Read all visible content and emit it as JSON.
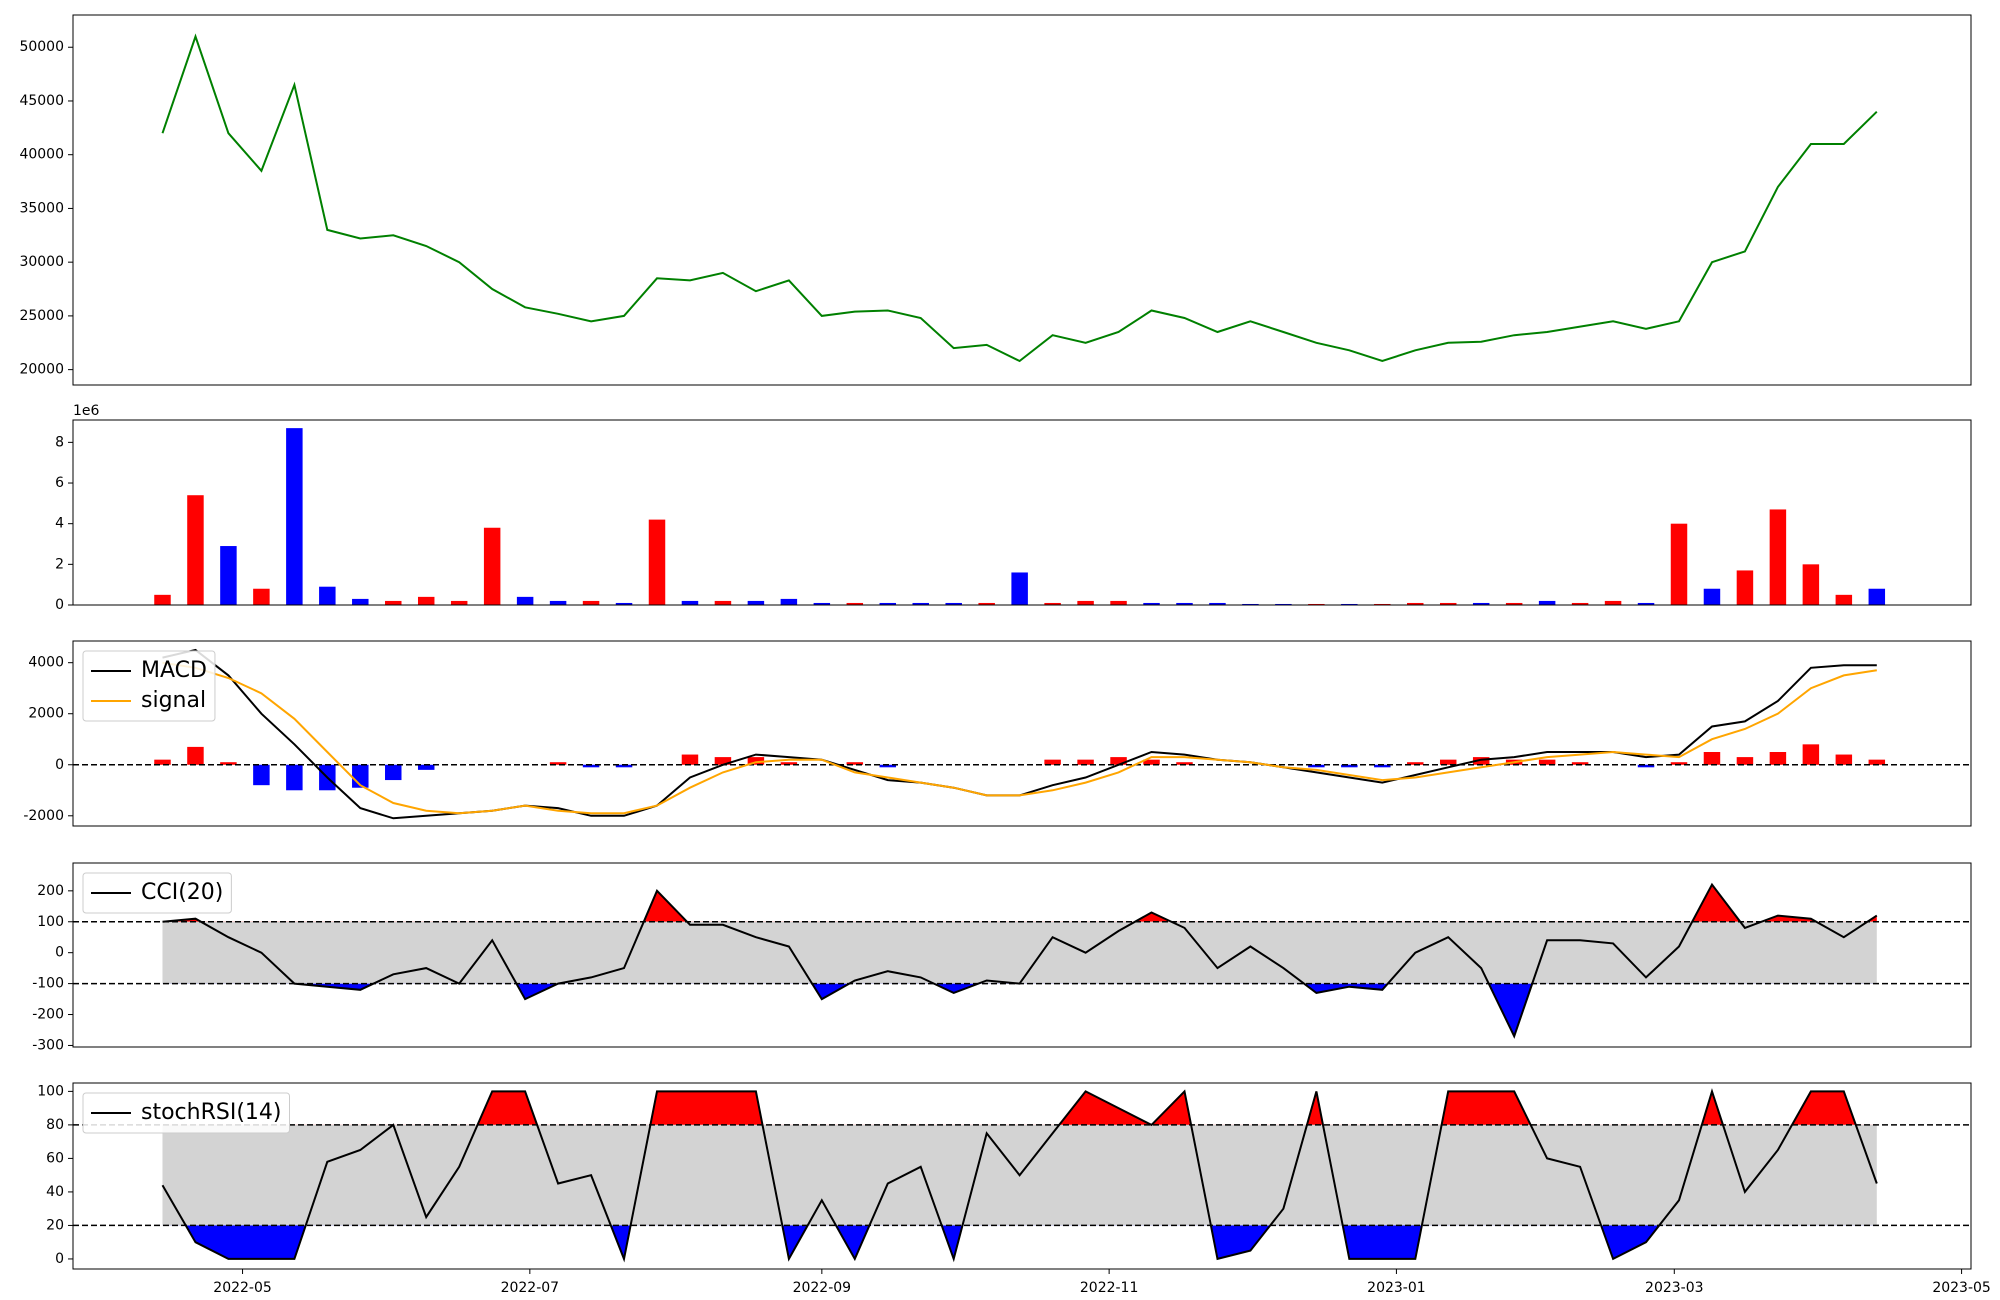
{
  "chart_data": [
    {
      "type": "line",
      "x": [
        -17,
        -10,
        -3,
        4,
        11,
        18,
        25,
        32,
        39,
        46,
        53,
        60,
        67,
        74,
        81,
        88,
        95,
        102,
        109,
        116,
        123,
        130,
        137,
        144,
        151,
        158,
        165,
        172,
        179,
        186,
        193,
        200,
        207,
        214,
        221,
        228,
        235,
        242,
        249,
        256,
        263,
        270,
        277,
        284,
        291,
        298,
        305,
        312,
        319,
        326,
        333,
        340,
        347
      ],
      "xlim": [
        -36,
        367
      ],
      "ylim": [
        18570,
        53000
      ],
      "yticks": [
        20000,
        25000,
        30000,
        35000,
        40000,
        45000,
        50000
      ],
      "series": [
        {
          "color": "green",
          "values": [
            42000,
            51000,
            42000,
            38500,
            46500,
            33000,
            32200,
            32500,
            31500,
            30000,
            27500,
            25800,
            25200,
            24500,
            25000,
            28500,
            28300,
            29000,
            27300,
            28300,
            25000,
            25400,
            25500,
            24800,
            22000,
            22300,
            20800,
            23200,
            22500,
            23500,
            25500,
            24800,
            23500,
            24500,
            23500,
            22500,
            21800,
            20800,
            21800,
            22500,
            22600,
            23200,
            23500,
            24000,
            24500,
            23800,
            24500,
            30000,
            31000,
            37000,
            41000,
            41000,
            44000
          ]
        }
      ]
    },
    {
      "type": "bar",
      "offset_label": "1e6",
      "x": [
        -17,
        -10,
        -3,
        4,
        11,
        18,
        25,
        32,
        39,
        46,
        53,
        60,
        67,
        74,
        81,
        88,
        95,
        102,
        109,
        116,
        123,
        130,
        137,
        144,
        151,
        158,
        165,
        172,
        179,
        186,
        193,
        200,
        207,
        214,
        221,
        228,
        235,
        242,
        249,
        256,
        263,
        270,
        277,
        284,
        291,
        298,
        305,
        312,
        319,
        326,
        333,
        340,
        347
      ],
      "xlim": [
        -36,
        367
      ],
      "ylim": [
        0,
        9.1
      ],
      "yticks": [
        0,
        2,
        4,
        6,
        8
      ],
      "values": [
        0.5,
        5.4,
        2.9,
        0.8,
        8.7,
        0.9,
        0.3,
        0.2,
        0.4,
        0.2,
        3.8,
        0.4,
        0.2,
        0.2,
        0.1,
        4.2,
        0.2,
        0.2,
        0.2,
        0.3,
        0.1,
        0.1,
        0.1,
        0.1,
        0.1,
        0.1,
        1.6,
        0.1,
        0.2,
        0.2,
        0.1,
        0.1,
        0.1,
        0.05,
        0.05,
        0.05,
        0.05,
        0.05,
        0.1,
        0.1,
        0.1,
        0.1,
        0.2,
        0.1,
        0.2,
        0.1,
        4.0,
        0.8,
        1.7,
        4.7,
        2.0,
        0.5,
        0.8
      ],
      "bar_colors": [
        "red",
        "red",
        "blue",
        "red",
        "blue",
        "blue",
        "blue",
        "red",
        "red",
        "red",
        "red",
        "blue",
        "blue",
        "red",
        "blue",
        "red",
        "blue",
        "red",
        "blue",
        "blue",
        "blue",
        "red",
        "blue",
        "blue",
        "blue",
        "red",
        "blue",
        "red",
        "red",
        "red",
        "blue",
        "blue",
        "blue",
        "blue",
        "blue",
        "red",
        "blue",
        "red",
        "red",
        "red",
        "blue",
        "red",
        "blue",
        "red",
        "red",
        "blue",
        "red",
        "blue",
        "red",
        "red",
        "red",
        "red",
        "blue"
      ]
    },
    {
      "type": "macd",
      "x": [
        -17,
        -10,
        -3,
        4,
        11,
        18,
        25,
        32,
        39,
        46,
        53,
        60,
        67,
        74,
        81,
        88,
        95,
        102,
        109,
        116,
        123,
        130,
        137,
        144,
        151,
        158,
        165,
        172,
        179,
        186,
        193,
        200,
        207,
        214,
        221,
        228,
        235,
        242,
        249,
        256,
        263,
        270,
        277,
        284,
        291,
        298,
        305,
        312,
        319,
        326,
        333,
        340,
        347
      ],
      "xlim": [
        -36,
        367
      ],
      "ylim": [
        -2400,
        4850
      ],
      "yticks": [
        -2000,
        0,
        2000,
        4000
      ],
      "hlines": [
        0
      ],
      "legend": "upper left",
      "hist": [
        200,
        700,
        100,
        -800,
        -1000,
        -1000,
        -900,
        -600,
        -200,
        0,
        0,
        0,
        100,
        -100,
        -100,
        0,
        400,
        300,
        300,
        100,
        0,
        100,
        -100,
        0,
        0,
        0,
        0,
        200,
        200,
        300,
        200,
        100,
        0,
        0,
        0,
        -100,
        -100,
        -100,
        100,
        200,
        300,
        200,
        200,
        100,
        0,
        -100,
        100,
        500,
        300,
        500,
        800,
        400,
        200
      ],
      "hist_colors": [
        "red",
        "blue"
      ],
      "series": [
        {
          "name": "MACD",
          "color": "black",
          "values": [
            4200,
            4500,
            3500,
            2000,
            800,
            -500,
            -1700,
            -2100,
            -2000,
            -1900,
            -1800,
            -1600,
            -1700,
            -2000,
            -2000,
            -1600,
            -500,
            0,
            400,
            300,
            200,
            -200,
            -600,
            -700,
            -900,
            -1200,
            -1200,
            -800,
            -500,
            0,
            500,
            400,
            200,
            100,
            -100,
            -300,
            -500,
            -700,
            -400,
            -100,
            200,
            300,
            500,
            500,
            500,
            300,
            400,
            1500,
            1700,
            2500,
            3800,
            3900,
            3900
          ]
        },
        {
          "name": "signal",
          "color": "orange",
          "values": [
            4000,
            3800,
            3400,
            2800,
            1800,
            500,
            -800,
            -1500,
            -1800,
            -1900,
            -1800,
            -1600,
            -1800,
            -1900,
            -1900,
            -1600,
            -900,
            -300,
            100,
            200,
            200,
            -300,
            -500,
            -700,
            -900,
            -1200,
            -1200,
            -1000,
            -700,
            -300,
            300,
            300,
            200,
            100,
            -100,
            -200,
            -400,
            -600,
            -500,
            -300,
            -100,
            100,
            300,
            400,
            500,
            400,
            300,
            1000,
            1400,
            2000,
            3000,
            3500,
            3700
          ]
        }
      ]
    },
    {
      "type": "oscillator",
      "x": [
        -17,
        -10,
        -3,
        4,
        11,
        18,
        25,
        32,
        39,
        46,
        53,
        60,
        67,
        74,
        81,
        88,
        95,
        102,
        109,
        116,
        123,
        130,
        137,
        144,
        151,
        158,
        165,
        172,
        179,
        186,
        193,
        200,
        207,
        214,
        221,
        228,
        235,
        242,
        249,
        256,
        263,
        270,
        277,
        284,
        291,
        298,
        305,
        312,
        319,
        326,
        333,
        340,
        347
      ],
      "xlim": [
        -36,
        367
      ],
      "ylim": [
        -305,
        290
      ],
      "yticks": [
        -300,
        -200,
        -100,
        0,
        100,
        200
      ],
      "hlines": [
        100,
        -100
      ],
      "legend": "upper left",
      "band_color": "lightgray",
      "above_color": "red",
      "below_color": "blue",
      "series": [
        {
          "name": "CCI(20)",
          "color": "black",
          "values": [
            100,
            110,
            50,
            0,
            -100,
            -110,
            -120,
            -70,
            -50,
            -100,
            40,
            -150,
            -100,
            -80,
            -50,
            200,
            90,
            90,
            50,
            20,
            -150,
            -90,
            -60,
            -80,
            -130,
            -90,
            -100,
            50,
            0,
            70,
            130,
            80,
            -50,
            20,
            -50,
            -130,
            -110,
            -120,
            0,
            50,
            -50,
            -270,
            40,
            40,
            30,
            -80,
            20,
            220,
            80,
            120,
            110,
            50,
            120
          ]
        }
      ]
    },
    {
      "type": "oscillator",
      "x": [
        -17,
        -10,
        -3,
        4,
        11,
        18,
        25,
        32,
        39,
        46,
        53,
        60,
        67,
        74,
        81,
        88,
        95,
        102,
        109,
        116,
        123,
        130,
        137,
        144,
        151,
        158,
        165,
        172,
        179,
        186,
        193,
        200,
        207,
        214,
        221,
        228,
        235,
        242,
        249,
        256,
        263,
        270,
        277,
        284,
        291,
        298,
        305,
        312,
        319,
        326,
        333,
        340,
        347
      ],
      "xlim": [
        -36,
        367
      ],
      "ylim": [
        -6,
        105
      ],
      "yticks": [
        0,
        20,
        40,
        60,
        80,
        100
      ],
      "hlines": [
        80,
        20
      ],
      "legend": "upper left",
      "band_color": "lightgray",
      "above_color": "red",
      "below_color": "blue",
      "xticks": [
        {
          "value": 0,
          "label": "2022-05"
        },
        {
          "value": 61,
          "label": "2022-07"
        },
        {
          "value": 123,
          "label": "2022-09"
        },
        {
          "value": 184,
          "label": "2022-11"
        },
        {
          "value": 245,
          "label": "2023-01"
        },
        {
          "value": 304,
          "label": "2023-03"
        },
        {
          "value": 365,
          "label": "2023-05"
        }
      ],
      "series": [
        {
          "name": "stochRSI(14)",
          "color": "black",
          "values": [
            44,
            10,
            0,
            0,
            0,
            58,
            65,
            80,
            25,
            55,
            100,
            100,
            45,
            50,
            0,
            100,
            100,
            100,
            100,
            0,
            35,
            0,
            45,
            55,
            0,
            75,
            50,
            75,
            100,
            90,
            80,
            100,
            0,
            5,
            30,
            100,
            0,
            0,
            0,
            100,
            100,
            100,
            60,
            55,
            0,
            10,
            35,
            100,
            40,
            65,
            100,
            100,
            45
          ]
        }
      ]
    }
  ]
}
